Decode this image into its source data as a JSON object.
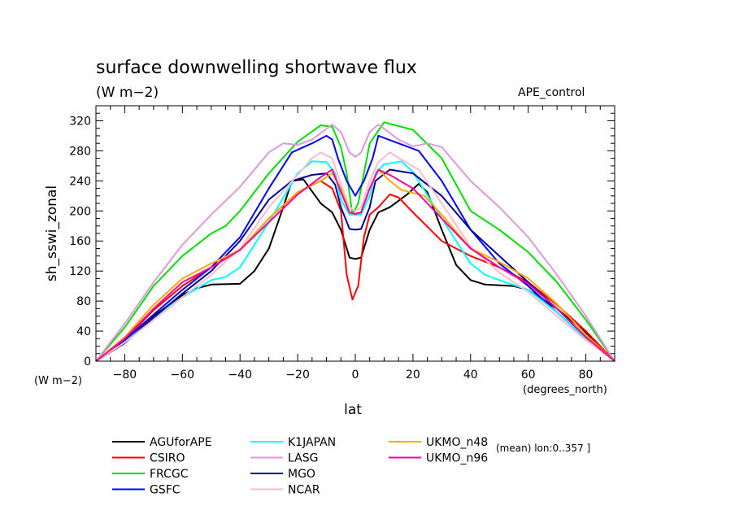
{
  "chart_data": {
    "type": "line",
    "title": "surface downwelling shortwave flux",
    "subtitle": "(W m−2)",
    "experiment": "APE_control",
    "ylabel": "sh_sswi_zonal",
    "y_unit_label": "(W m−2)",
    "xlabel": "lat",
    "x_unit_label": "(degrees_north)",
    "footnote": "(mean) lon:0..357 ]",
    "xlim": [
      -90,
      90
    ],
    "ylim": [
      0,
      340
    ],
    "x_ticks": [
      -80,
      -60,
      -40,
      -20,
      0,
      20,
      40,
      60,
      80
    ],
    "y_ticks": [
      0,
      40,
      80,
      120,
      160,
      200,
      240,
      280,
      320
    ],
    "grid": false,
    "legend_position": "bottom",
    "series": [
      {
        "name": "AGUforAPE",
        "color": "#000000",
        "points": [
          [
            -90,
            0
          ],
          [
            -80,
            28
          ],
          [
            -70,
            60
          ],
          [
            -60,
            88
          ],
          [
            -55,
            97
          ],
          [
            -50,
            102
          ],
          [
            -40,
            103
          ],
          [
            -35,
            120
          ],
          [
            -30,
            150
          ],
          [
            -25,
            205
          ],
          [
            -22,
            240
          ],
          [
            -18,
            242
          ],
          [
            -12,
            210
          ],
          [
            -8,
            198
          ],
          [
            -5,
            175
          ],
          [
            -2,
            138
          ],
          [
            0,
            136
          ],
          [
            2,
            138
          ],
          [
            5,
            175
          ],
          [
            8,
            198
          ],
          [
            12,
            205
          ],
          [
            18,
            222
          ],
          [
            22,
            236
          ],
          [
            25,
            225
          ],
          [
            30,
            175
          ],
          [
            35,
            128
          ],
          [
            40,
            108
          ],
          [
            45,
            102
          ],
          [
            55,
            100
          ],
          [
            60,
            95
          ],
          [
            70,
            70
          ],
          [
            80,
            38
          ],
          [
            90,
            0
          ]
        ]
      },
      {
        "name": "CSIRO",
        "color": "#ff0000",
        "points": [
          [
            -90,
            0
          ],
          [
            -80,
            28
          ],
          [
            -70,
            68
          ],
          [
            -60,
            100
          ],
          [
            -50,
            125
          ],
          [
            -40,
            148
          ],
          [
            -30,
            190
          ],
          [
            -20,
            225
          ],
          [
            -12,
            240
          ],
          [
            -8,
            230
          ],
          [
            -5,
            200
          ],
          [
            -3,
            115
          ],
          [
            -1,
            82
          ],
          [
            1,
            100
          ],
          [
            3,
            165
          ],
          [
            5,
            195
          ],
          [
            8,
            205
          ],
          [
            12,
            222
          ],
          [
            15,
            218
          ],
          [
            20,
            198
          ],
          [
            30,
            160
          ],
          [
            40,
            140
          ],
          [
            50,
            125
          ],
          [
            60,
            105
          ],
          [
            70,
            75
          ],
          [
            80,
            40
          ],
          [
            90,
            0
          ]
        ]
      },
      {
        "name": "FRCGC",
        "color": "#00dd00",
        "points": [
          [
            -90,
            0
          ],
          [
            -80,
            45
          ],
          [
            -70,
            100
          ],
          [
            -60,
            140
          ],
          [
            -50,
            170
          ],
          [
            -45,
            180
          ],
          [
            -40,
            200
          ],
          [
            -30,
            250
          ],
          [
            -20,
            292
          ],
          [
            -12,
            314
          ],
          [
            -8,
            312
          ],
          [
            -5,
            285
          ],
          [
            -3,
            250
          ],
          [
            -1,
            195
          ],
          [
            1,
            210
          ],
          [
            3,
            250
          ],
          [
            5,
            290
          ],
          [
            10,
            318
          ],
          [
            20,
            308
          ],
          [
            30,
            270
          ],
          [
            40,
            200
          ],
          [
            50,
            175
          ],
          [
            60,
            145
          ],
          [
            70,
            105
          ],
          [
            80,
            55
          ],
          [
            90,
            0
          ]
        ]
      },
      {
        "name": "GSFC",
        "color": "#0000ff",
        "points": [
          [
            -90,
            0
          ],
          [
            -80,
            28
          ],
          [
            -70,
            62
          ],
          [
            -60,
            95
          ],
          [
            -50,
            125
          ],
          [
            -40,
            165
          ],
          [
            -30,
            230
          ],
          [
            -22,
            278
          ],
          [
            -15,
            290
          ],
          [
            -10,
            300
          ],
          [
            -8,
            295
          ],
          [
            -6,
            270
          ],
          [
            -3,
            240
          ],
          [
            0,
            220
          ],
          [
            3,
            240
          ],
          [
            6,
            270
          ],
          [
            8,
            300
          ],
          [
            15,
            290
          ],
          [
            22,
            280
          ],
          [
            30,
            240
          ],
          [
            40,
            175
          ],
          [
            50,
            130
          ],
          [
            60,
            100
          ],
          [
            70,
            65
          ],
          [
            80,
            30
          ],
          [
            90,
            0
          ]
        ]
      },
      {
        "name": "K1JAPAN",
        "color": "#00ffff",
        "points": [
          [
            -90,
            0
          ],
          [
            -80,
            25
          ],
          [
            -70,
            58
          ],
          [
            -60,
            85
          ],
          [
            -50,
            108
          ],
          [
            -45,
            112
          ],
          [
            -40,
            125
          ],
          [
            -30,
            185
          ],
          [
            -20,
            250
          ],
          [
            -15,
            266
          ],
          [
            -10,
            265
          ],
          [
            -7,
            250
          ],
          [
            -5,
            215
          ],
          [
            -2,
            195
          ],
          [
            0,
            195
          ],
          [
            2,
            195
          ],
          [
            5,
            220
          ],
          [
            7,
            250
          ],
          [
            10,
            262
          ],
          [
            16,
            266
          ],
          [
            20,
            252
          ],
          [
            30,
            190
          ],
          [
            40,
            130
          ],
          [
            45,
            115
          ],
          [
            50,
            108
          ],
          [
            60,
            95
          ],
          [
            70,
            65
          ],
          [
            80,
            30
          ],
          [
            90,
            0
          ]
        ]
      },
      {
        "name": "LASG",
        "color": "#dd99dd",
        "points": [
          [
            -90,
            0
          ],
          [
            -80,
            50
          ],
          [
            -70,
            105
          ],
          [
            -60,
            155
          ],
          [
            -50,
            195
          ],
          [
            -40,
            232
          ],
          [
            -30,
            278
          ],
          [
            -25,
            290
          ],
          [
            -20,
            288
          ],
          [
            -15,
            295
          ],
          [
            -8,
            315
          ],
          [
            -5,
            305
          ],
          [
            -2,
            278
          ],
          [
            0,
            272
          ],
          [
            2,
            278
          ],
          [
            5,
            305
          ],
          [
            8,
            315
          ],
          [
            15,
            295
          ],
          [
            20,
            286
          ],
          [
            25,
            290
          ],
          [
            30,
            285
          ],
          [
            40,
            240
          ],
          [
            50,
            205
          ],
          [
            60,
            165
          ],
          [
            70,
            115
          ],
          [
            80,
            60
          ],
          [
            90,
            0
          ]
        ]
      },
      {
        "name": "MGO",
        "color": "#000099",
        "points": [
          [
            -90,
            0
          ],
          [
            -80,
            24
          ],
          [
            -70,
            58
          ],
          [
            -60,
            90
          ],
          [
            -50,
            120
          ],
          [
            -40,
            160
          ],
          [
            -30,
            215
          ],
          [
            -22,
            240
          ],
          [
            -15,
            248
          ],
          [
            -10,
            250
          ],
          [
            -7,
            235
          ],
          [
            -5,
            205
          ],
          [
            -2,
            176
          ],
          [
            0,
            175
          ],
          [
            2,
            176
          ],
          [
            5,
            205
          ],
          [
            7,
            240
          ],
          [
            12,
            255
          ],
          [
            20,
            250
          ],
          [
            30,
            220
          ],
          [
            40,
            175
          ],
          [
            50,
            140
          ],
          [
            60,
            105
          ],
          [
            70,
            70
          ],
          [
            80,
            32
          ],
          [
            90,
            0
          ]
        ]
      },
      {
        "name": "NCAR",
        "color": "#ffbbcc",
        "points": [
          [
            -90,
            0
          ],
          [
            -80,
            25
          ],
          [
            -70,
            55
          ],
          [
            -60,
            85
          ],
          [
            -50,
            115
          ],
          [
            -40,
            150
          ],
          [
            -30,
            205
          ],
          [
            -20,
            248
          ],
          [
            -15,
            270
          ],
          [
            -12,
            278
          ],
          [
            -8,
            270
          ],
          [
            -5,
            235
          ],
          [
            -2,
            205
          ],
          [
            0,
            200
          ],
          [
            2,
            205
          ],
          [
            5,
            240
          ],
          [
            8,
            265
          ],
          [
            12,
            278
          ],
          [
            16,
            268
          ],
          [
            22,
            255
          ],
          [
            30,
            210
          ],
          [
            40,
            152
          ],
          [
            50,
            118
          ],
          [
            60,
            92
          ],
          [
            70,
            60
          ],
          [
            80,
            28
          ],
          [
            90,
            0
          ]
        ]
      },
      {
        "name": "UKMO_n48",
        "color": "#ffaa00",
        "points": [
          [
            -90,
            0
          ],
          [
            -80,
            32
          ],
          [
            -70,
            75
          ],
          [
            -60,
            110
          ],
          [
            -50,
            130
          ],
          [
            -40,
            148
          ],
          [
            -30,
            190
          ],
          [
            -20,
            225
          ],
          [
            -12,
            240
          ],
          [
            -8,
            250
          ],
          [
            -5,
            230
          ],
          [
            -2,
            198
          ],
          [
            0,
            196
          ],
          [
            2,
            198
          ],
          [
            5,
            230
          ],
          [
            8,
            255
          ],
          [
            12,
            240
          ],
          [
            16,
            228
          ],
          [
            24,
            220
          ],
          [
            30,
            195
          ],
          [
            40,
            150
          ],
          [
            50,
            132
          ],
          [
            60,
            110
          ],
          [
            70,
            76
          ],
          [
            80,
            35
          ],
          [
            90,
            0
          ]
        ]
      },
      {
        "name": "UKMO_n96",
        "color": "#ff0099",
        "points": [
          [
            -90,
            0
          ],
          [
            -80,
            30
          ],
          [
            -70,
            70
          ],
          [
            -60,
            105
          ],
          [
            -50,
            125
          ],
          [
            -40,
            148
          ],
          [
            -30,
            185
          ],
          [
            -20,
            222
          ],
          [
            -12,
            245
          ],
          [
            -8,
            255
          ],
          [
            -5,
            225
          ],
          [
            -2,
            198
          ],
          [
            0,
            196
          ],
          [
            2,
            198
          ],
          [
            5,
            230
          ],
          [
            8,
            255
          ],
          [
            12,
            248
          ],
          [
            20,
            230
          ],
          [
            30,
            190
          ],
          [
            40,
            150
          ],
          [
            50,
            125
          ],
          [
            60,
            103
          ],
          [
            70,
            70
          ],
          [
            80,
            32
          ],
          [
            90,
            0
          ]
        ]
      }
    ]
  }
}
